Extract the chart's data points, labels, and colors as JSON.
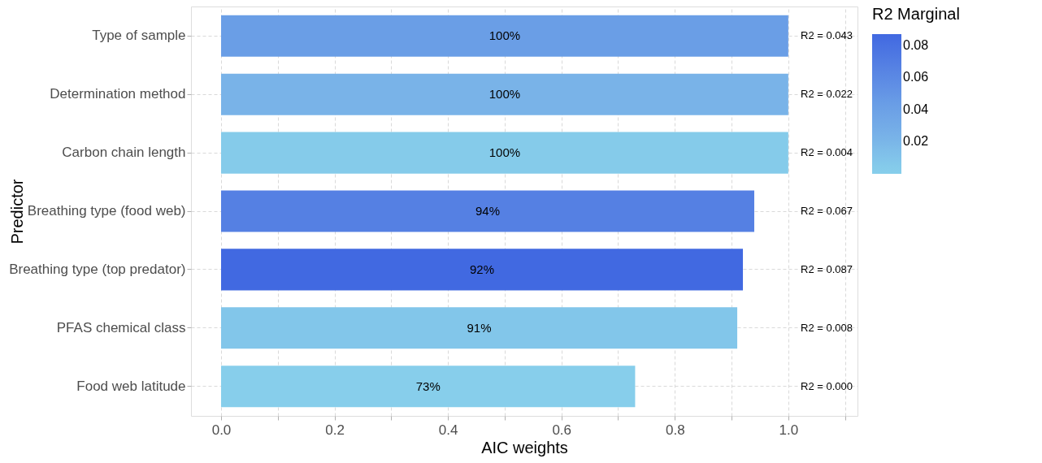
{
  "chart_data": {
    "type": "bar",
    "orientation": "horizontal",
    "xlabel": "AIC weights",
    "ylabel": "Predictor",
    "legend_title": "R2 Marginal",
    "categories": [
      "Type of sample",
      "Determination method",
      "Carbon chain length",
      "Breathing type (food web)",
      "Breathing type (top predator)",
      "PFAS chemical class",
      "Food web latitude"
    ],
    "values": [
      1.0,
      1.0,
      1.0,
      0.94,
      0.92,
      0.91,
      0.73
    ],
    "value_labels": [
      "100%",
      "100%",
      "100%",
      "94%",
      "92%",
      "91%",
      "73%"
    ],
    "cvalues": [
      0.043,
      0.022,
      0.004,
      0.067,
      0.087,
      0.008,
      0.0
    ],
    "colors": [
      "#6a9ee6",
      "#79b3e8",
      "#85cbea",
      "#5580e3",
      "#4169e1",
      "#82c6ea",
      "#87ceeb"
    ],
    "clim": [
      0,
      0.087
    ],
    "cticks": [
      0.02,
      0.04,
      0.06,
      0.08
    ],
    "xlim": [
      -0.053,
      1.122
    ],
    "xticks": [
      {
        "value": 0,
        "label": "0.0"
      },
      {
        "value": 0.1,
        "label": null
      },
      0.2,
      {
        "value": 0.3,
        "label": null
      },
      0.4,
      {
        "value": 0.5,
        "label": null
      },
      0.6,
      {
        "value": 0.7,
        "label": null
      },
      0.8,
      {
        "value": 0.9,
        "label": null
      },
      {
        "value": 1,
        "label": "1.0"
      },
      {
        "value": 1.1,
        "label": null
      }
    ],
    "annotations": [
      "R2 = 0.043",
      "R2 = 0.022",
      "R2 = 0.004",
      "R2 = 0.067",
      "R2 = 0.087",
      "R2 = 0.008",
      "R2 = 0.000"
    ],
    "grid": true
  }
}
